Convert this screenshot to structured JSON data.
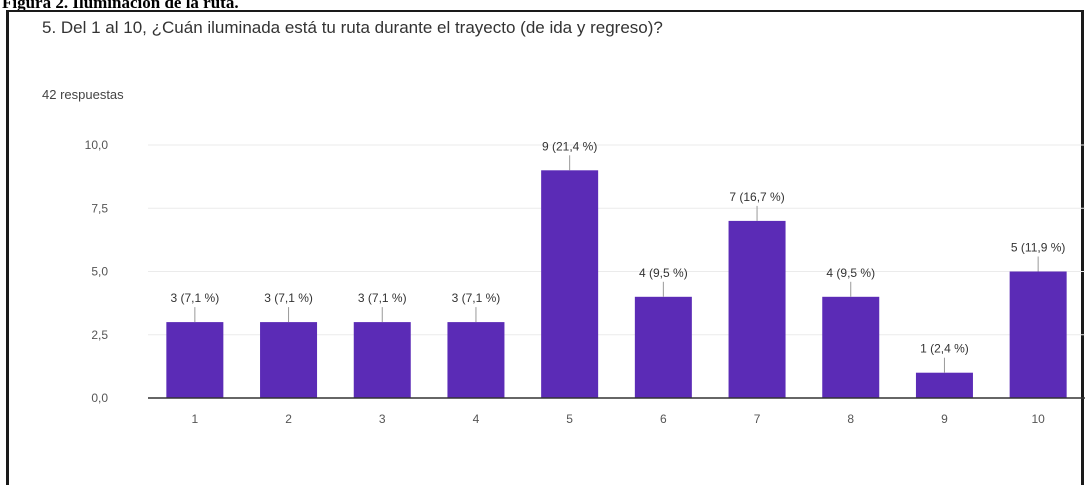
{
  "figure_caption": "Figura 2. Iluminación de la ruta.",
  "question": "5. Del 1 al 10, ¿Cuán iluminada está tu ruta durante el trayecto (de ida y regreso)?",
  "responses": "42 respuestas",
  "colors": {
    "bar": "#5b2bb6",
    "axis": "#333333",
    "grid": "#ebebeb",
    "tick_text": "#555555"
  },
  "chart_data": {
    "type": "bar",
    "categories": [
      "1",
      "2",
      "3",
      "4",
      "5",
      "6",
      "7",
      "8",
      "9",
      "10"
    ],
    "values": [
      3,
      3,
      3,
      3,
      9,
      4,
      7,
      4,
      1,
      5
    ],
    "data_labels": [
      "3 (7,1 %)",
      "3 (7,1 %)",
      "3 (7,1 %)",
      "3 (7,1 %)",
      "9 (21,4 %)",
      "4 (9,5 %)",
      "7 (16,7 %)",
      "4 (9,5 %)",
      "1 (2,4 %)",
      "5 (11,9 %)"
    ],
    "yticks": [
      0,
      2.5,
      5,
      7.5,
      10
    ],
    "ytick_labels": [
      "0,0",
      "2,5",
      "5,0",
      "7,5",
      "10,0"
    ],
    "ylim": [
      0,
      10
    ],
    "title": "",
    "xlabel": "",
    "ylabel": "",
    "grid": true
  }
}
